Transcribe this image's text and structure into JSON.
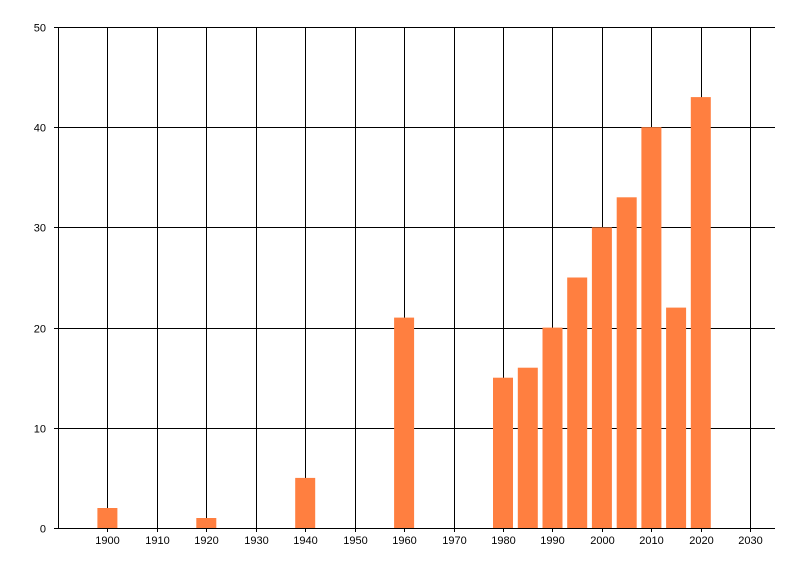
{
  "chart_data": {
    "type": "bar",
    "title": "",
    "xlabel": "",
    "ylabel": "",
    "x": [
      1900,
      1920,
      1940,
      1960,
      1980,
      1985,
      1990,
      1995,
      2000,
      2005,
      2010,
      2015,
      2020
    ],
    "values": [
      2,
      1,
      5,
      21,
      15,
      16,
      20,
      25,
      30,
      33,
      40,
      22,
      43
    ],
    "xlim": [
      1890,
      2035
    ],
    "ylim": [
      0,
      50
    ],
    "x_ticks": [
      1900,
      1910,
      1920,
      1930,
      1940,
      1950,
      1960,
      1970,
      1980,
      1990,
      2000,
      2010,
      2020,
      2030
    ],
    "y_ticks": [
      0,
      10,
      20,
      30,
      40,
      50
    ],
    "grid": true,
    "legend": "none",
    "bar_color": "#ff7f40",
    "grid_color": "#000000"
  }
}
